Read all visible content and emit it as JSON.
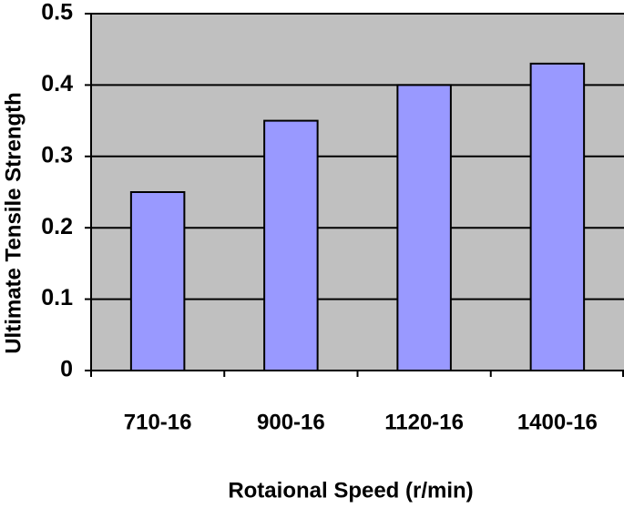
{
  "chart_data": {
    "type": "bar",
    "x_label": "Rotaional Speed (r/min)",
    "y_label": "Ultimate  Tensile Strength",
    "categories": [
      "710-16",
      "900-16",
      "1120-16",
      "1400-16"
    ],
    "values": [
      0.25,
      0.35,
      0.4,
      0.43
    ],
    "color": "#9999ff",
    "plot_background": "#c0c0c0",
    "ylim": [
      0,
      0.5
    ],
    "yticks": [
      0,
      0.1,
      0.2,
      0.3,
      0.4,
      0.5
    ],
    "grid": true
  }
}
